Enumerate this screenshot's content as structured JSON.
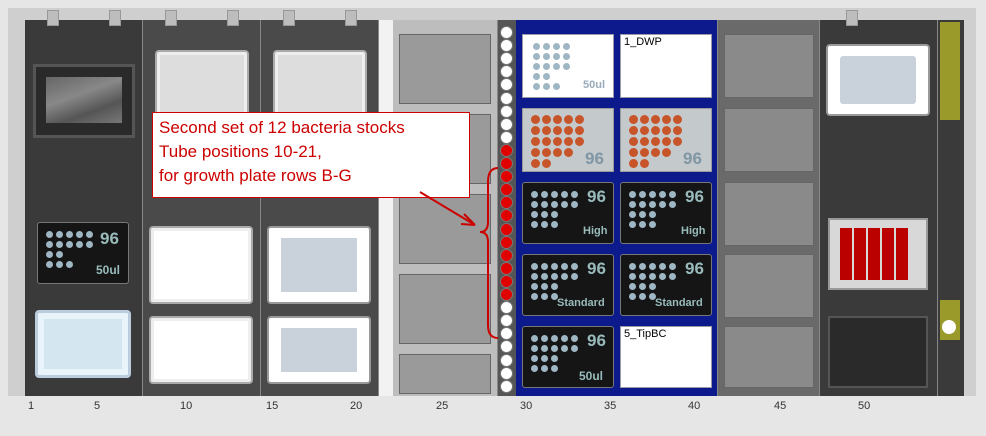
{
  "callout": {
    "line1": "Second set of 12 bacteria stocks",
    "line2": "Tube positions 10-21,",
    "line3": "for growth plate rows B-G"
  },
  "plates": {
    "dwp_label": "1_DWP",
    "tipbc_label": "5_TipBC"
  },
  "labware": {
    "tips_96": "96",
    "tips_50ul": "50ul",
    "tips_high": "High",
    "tips_standard": "Standard"
  },
  "tubes": {
    "total": 28,
    "red_start": 10,
    "red_end": 21
  },
  "scale": {
    "ticks": [
      "1",
      "5",
      "10",
      "15",
      "20",
      "25",
      "30",
      "35",
      "40",
      "45",
      "50"
    ]
  },
  "colors": {
    "deck_carrier_blue": "#0d1a8c",
    "callout_red": "#cc0000",
    "tube_red": "#e00000",
    "tube_white": "#ffffff"
  }
}
